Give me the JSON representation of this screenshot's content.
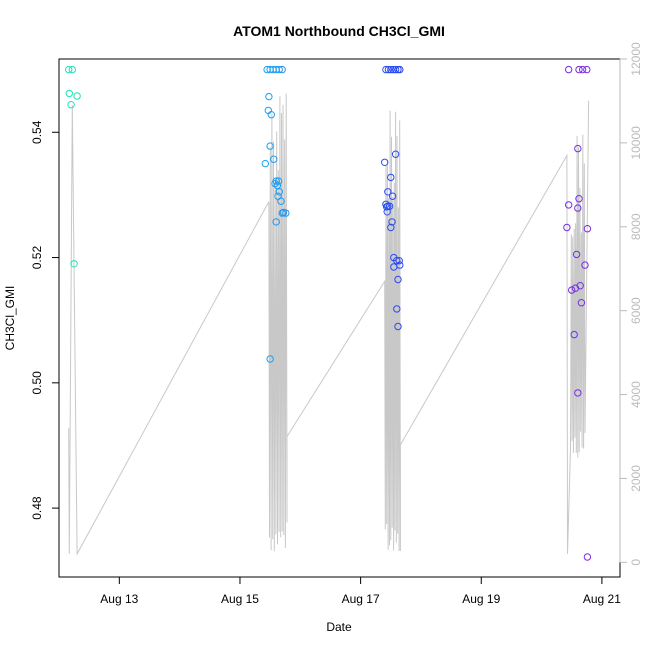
{
  "chart_data": {
    "type": "scatter",
    "title": "ATOM1 Northbound CH3Cl_GMI",
    "xlabel": "Date",
    "ylabel": "CH3Cl_GMI",
    "x_ticks": [
      "Aug 13",
      "Aug 15",
      "Aug 17",
      "Aug 19",
      "Aug 21"
    ],
    "x_tick_days": [
      13,
      15,
      17,
      19,
      21
    ],
    "xlim": [
      12.0,
      21.3
    ],
    "ylim": [
      0.469,
      0.5517
    ],
    "y_ticks": [
      0.48,
      0.5,
      0.52,
      0.54
    ],
    "y_tick_labels": [
      "0.48",
      "0.50",
      "0.52",
      "0.54"
    ],
    "y2_label": "",
    "y2lim": [
      -350,
      12000
    ],
    "y2_ticks": [
      0,
      2000,
      4000,
      6000,
      8000,
      10000,
      12000
    ],
    "y2_tick_labels": [
      "0",
      "2000",
      "4000",
      "6000",
      "8000",
      "10000",
      "12000"
    ],
    "grid": false,
    "legend": "none",
    "colors": {
      "altitude_line": "#c8c8c8",
      "right_axis": "#bbbbbb",
      "point_gradient": [
        "#1ee6b4",
        "#1eb4f0",
        "#2d3cf0",
        "#7d2de6"
      ]
    },
    "series": [
      {
        "marker": "open-circle",
        "x": [
          12.16,
          12.22,
          12.17,
          12.2,
          12.3,
          12.25,
          15.45,
          15.5,
          15.55,
          15.6,
          15.65,
          15.7,
          15.48,
          15.47,
          15.52,
          15.5,
          15.42,
          15.56,
          15.6,
          15.58,
          15.62,
          15.65,
          15.63,
          15.68,
          15.72,
          15.7,
          15.6,
          15.64,
          15.76,
          15.5,
          17.42,
          17.46,
          17.5,
          17.54,
          17.58,
          17.62,
          17.65,
          17.4,
          17.45,
          17.5,
          17.53,
          17.48,
          17.42,
          17.44,
          17.52,
          17.5,
          17.43,
          17.45,
          17.58,
          17.55,
          17.6,
          17.64,
          17.65,
          17.62,
          17.55,
          17.6,
          17.62,
          20.45,
          20.62,
          20.68,
          20.75,
          20.45,
          20.42,
          20.5,
          20.56,
          20.62,
          20.6,
          20.58,
          20.6,
          20.64,
          20.66,
          20.76,
          20.72,
          20.54,
          20.6,
          20.76
        ],
        "y": [
          0.55,
          0.55,
          0.5462,
          0.5444,
          0.5458,
          0.519,
          0.55,
          0.55,
          0.55,
          0.55,
          0.55,
          0.55,
          0.5457,
          0.5435,
          0.5428,
          0.5378,
          0.535,
          0.5357,
          0.5322,
          0.5318,
          0.5315,
          0.5305,
          0.5298,
          0.529,
          0.5272,
          0.5271,
          0.5257,
          0.5322,
          0.5271,
          0.5038,
          0.55,
          0.55,
          0.55,
          0.55,
          0.55,
          0.55,
          0.55,
          0.5352,
          0.5305,
          0.5328,
          0.5298,
          0.5282,
          0.5285,
          0.5273,
          0.5257,
          0.5248,
          0.5281,
          0.5282,
          0.5365,
          0.52,
          0.5195,
          0.5195,
          0.5188,
          0.5165,
          0.5185,
          0.5118,
          0.509,
          0.55,
          0.55,
          0.55,
          0.55,
          0.5284,
          0.5248,
          0.5148,
          0.5151,
          0.5294,
          0.5374,
          0.5205,
          0.5279,
          0.5155,
          0.5128,
          0.5246,
          0.5188,
          0.5077,
          0.4984,
          0.4722
        ]
      }
    ]
  }
}
